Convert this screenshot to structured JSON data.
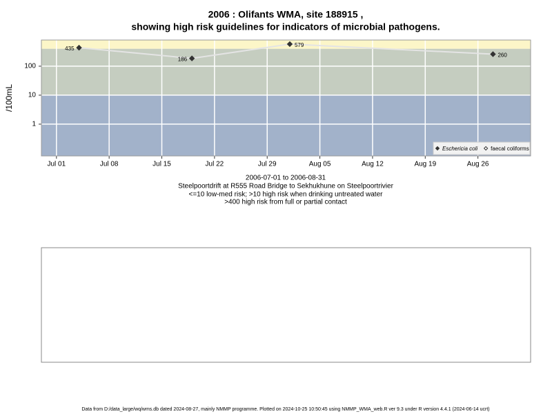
{
  "chart_data": {
    "type": "line",
    "title": "2006 : Olifants WMA, site 188915 ,",
    "title_line2": "showing high risk guidelines for indicators of microbial pathogens.",
    "y_label": "/100mL",
    "subtitle_lines": [
      "2006-07-01 to 2006-08-31",
      "Steelpoortdrift at R555 Road Bridge to Sekhukhune on Steelpoortrivier",
      "<=10 low-med risk; >10 high risk when drinking untreated water",
      ">400 high risk from full or partial contact"
    ],
    "footer": "Data from D:/data_large/wq/wms.db dated 2024-08-27, mainly NMMP programme. Plotted on 2024-10-25 10:50:45 using NMMP_WMA_web.R ver 9.3 under R version 4.4.1 (2024-06-14 ucrt)",
    "x": [
      "2006-07-04",
      "2006-07-19",
      "2006-08-01",
      "2006-08-28"
    ],
    "series": [
      {
        "name": "Eschericia coli",
        "color": "#333333",
        "marker": "filled-diamond",
        "values": [
          435,
          186,
          579,
          260
        ]
      },
      {
        "name": "faecal coliforms",
        "color": "#333333",
        "marker": "open-diamond",
        "values": [
          null,
          null,
          null,
          null
        ]
      }
    ],
    "line_color": "#e4e4e4",
    "xlim": [
      "2006-06-29",
      "2006-09-02"
    ],
    "xticks": [
      {
        "value": "2006-07-01",
        "label": "Jul 01"
      },
      {
        "value": "2006-07-08",
        "label": "Jul 08"
      },
      {
        "value": "2006-07-15",
        "label": "Jul 15"
      },
      {
        "value": "2006-07-22",
        "label": "Jul 22"
      },
      {
        "value": "2006-07-29",
        "label": "Jul 29"
      },
      {
        "value": "2006-08-05",
        "label": "Aug 05"
      },
      {
        "value": "2006-08-12",
        "label": "Aug 12"
      },
      {
        "value": "2006-08-19",
        "label": "Aug 19"
      },
      {
        "value": "2006-08-26",
        "label": "Aug 26"
      }
    ],
    "ylim": [
      0.08,
      800
    ],
    "yticks": [
      1,
      10,
      100
    ],
    "log_y": true,
    "grid": true,
    "bands": [
      {
        "from": 0.08,
        "to": 10,
        "color": "#a2b2ca"
      },
      {
        "from": 10,
        "to": 400,
        "color": "#c5cdc0"
      },
      {
        "from": 400,
        "to": 800,
        "color": "#fcf6c8"
      }
    ],
    "legend_position": "bottom-right"
  }
}
